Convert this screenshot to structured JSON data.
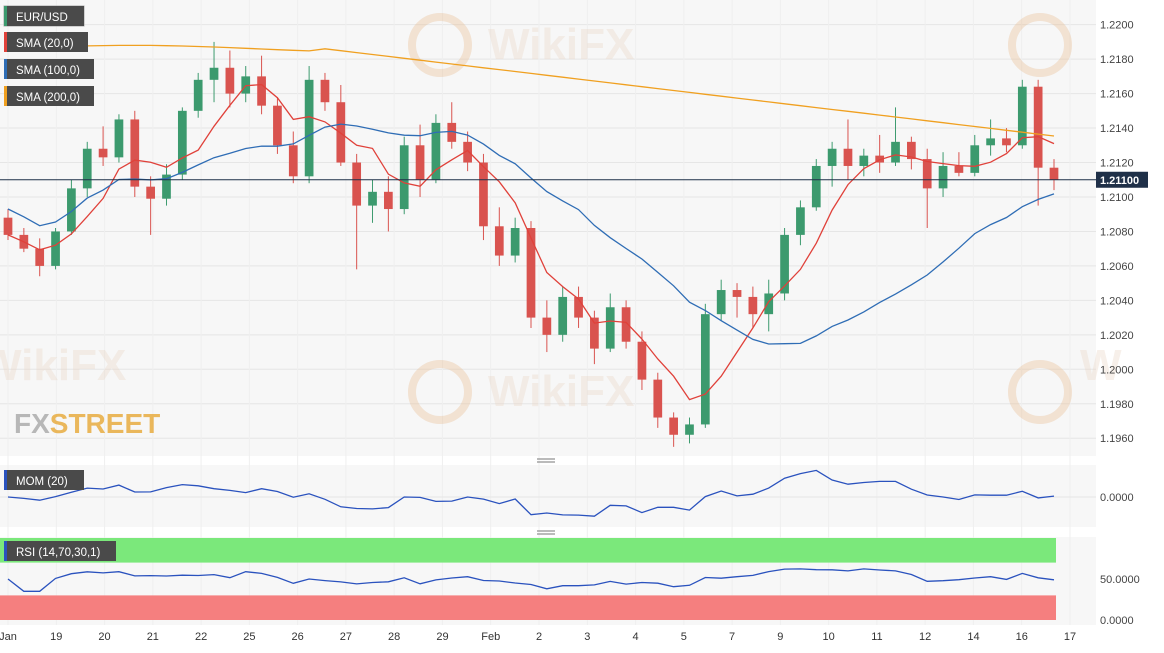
{
  "legend": {
    "symbol": "EUR/USD",
    "sma20": "SMA (20,0)",
    "sma100": "SMA (100,0)",
    "sma200": "SMA (200,0)"
  },
  "watermark": {
    "brand": "FXSTREET",
    "brand_fx": "FX",
    "brand_street": "STREET",
    "wikifx": "WikiFX"
  },
  "colors": {
    "up": "#3c9a6e",
    "down": "#d9534f",
    "sma20": "#e0413a",
    "sma100": "#2f6db5",
    "sma200": "#f0a020",
    "price_line": "#1f3048",
    "mom_line": "#2a52be",
    "rsi_line": "#2a52be",
    "rsi_overbought": "#7be87b",
    "rsi_oversold": "#f57f7f",
    "grid": "#e6e6e6"
  },
  "chart_data": [
    {
      "type": "candlestick",
      "series_name": "EUR/USD",
      "y_ticks": [
        "1.1960",
        "1.1980",
        "1.2000",
        "1.2020",
        "1.2040",
        "1.2060",
        "1.2080",
        "1.2100",
        "1.2120",
        "1.2140",
        "1.2160",
        "1.2180",
        "1.2200"
      ],
      "ylim": [
        1.1952,
        1.2212
      ],
      "last_price": 1.211,
      "last_price_label": "1.21100",
      "x_ticks": [
        "Jan",
        "19",
        "20",
        "21",
        "22",
        "25",
        "26",
        "27",
        "28",
        "29",
        "Feb",
        "2",
        "3",
        "4",
        "5",
        "7",
        "9",
        "10",
        "11",
        "12",
        "14",
        "16",
        "17"
      ],
      "candles": [
        [
          1.2088,
          1.2093,
          1.2075,
          1.2078
        ],
        [
          1.2078,
          1.2082,
          1.2068,
          1.207
        ],
        [
          1.207,
          1.2076,
          1.2054,
          1.206
        ],
        [
          1.206,
          1.2082,
          1.2058,
          1.208
        ],
        [
          1.208,
          1.211,
          1.2078,
          1.2105
        ],
        [
          1.2105,
          1.2132,
          1.21,
          1.2128
        ],
        [
          1.2128,
          1.2141,
          1.2118,
          1.2123
        ],
        [
          1.2123,
          1.2148,
          1.212,
          1.2145
        ],
        [
          1.2145,
          1.215,
          1.21,
          1.2106
        ],
        [
          1.2106,
          1.2112,
          1.2078,
          1.2099
        ],
        [
          1.2099,
          1.2119,
          1.2095,
          1.2113
        ],
        [
          1.2113,
          1.2152,
          1.211,
          1.215
        ],
        [
          1.215,
          1.2172,
          1.2146,
          1.2168
        ],
        [
          1.2168,
          1.219,
          1.2155,
          1.2175
        ],
        [
          1.2175,
          1.2185,
          1.2152,
          1.216
        ],
        [
          1.216,
          1.2176,
          1.2155,
          1.217
        ],
        [
          1.217,
          1.2182,
          1.2148,
          1.2153
        ],
        [
          1.2153,
          1.2158,
          1.2125,
          1.213
        ],
        [
          1.213,
          1.2138,
          1.2108,
          1.2112
        ],
        [
          1.2112,
          1.2176,
          1.2108,
          1.2168
        ],
        [
          1.2168,
          1.2172,
          1.215,
          1.2155
        ],
        [
          1.2155,
          1.2165,
          1.2118,
          1.212
        ],
        [
          1.212,
          1.2125,
          1.2058,
          1.2095
        ],
        [
          1.2095,
          1.211,
          1.2085,
          1.2103
        ],
        [
          1.2103,
          1.2112,
          1.208,
          1.2093
        ],
        [
          1.2093,
          1.2135,
          1.209,
          1.213
        ],
        [
          1.213,
          1.2142,
          1.21,
          1.211
        ],
        [
          1.211,
          1.2148,
          1.2108,
          1.2143
        ],
        [
          1.2143,
          1.2155,
          1.2128,
          1.2132
        ],
        [
          1.2132,
          1.2138,
          1.2115,
          1.212
        ],
        [
          1.212,
          1.2125,
          1.2075,
          1.2083
        ],
        [
          1.2083,
          1.2094,
          1.206,
          1.2066
        ],
        [
          1.2066,
          1.2088,
          1.2062,
          1.2082
        ],
        [
          1.2082,
          1.2086,
          1.2024,
          1.203
        ],
        [
          1.203,
          1.204,
          1.201,
          1.202
        ],
        [
          1.202,
          1.2048,
          1.2016,
          1.2042
        ],
        [
          1.2042,
          1.2048,
          1.2024,
          1.203
        ],
        [
          1.203,
          1.2034,
          1.2003,
          1.2012
        ],
        [
          1.2012,
          1.2044,
          1.201,
          1.2036
        ],
        [
          1.2036,
          1.204,
          1.2012,
          1.2016
        ],
        [
          1.2016,
          1.2022,
          1.1988,
          1.1994
        ],
        [
          1.1994,
          1.1998,
          1.1966,
          1.1972
        ],
        [
          1.1972,
          1.1975,
          1.1955,
          1.1962
        ],
        [
          1.1962,
          1.1972,
          1.1957,
          1.1968
        ],
        [
          1.1968,
          1.2038,
          1.1966,
          1.2032
        ],
        [
          1.2032,
          1.2052,
          1.2028,
          1.2046
        ],
        [
          1.2046,
          1.205,
          1.203,
          1.2042
        ],
        [
          1.2042,
          1.2048,
          1.2024,
          1.2032
        ],
        [
          1.2032,
          1.2052,
          1.2022,
          1.2044
        ],
        [
          1.2044,
          1.2082,
          1.204,
          1.2078
        ],
        [
          1.2078,
          1.2098,
          1.2072,
          1.2094
        ],
        [
          1.2094,
          1.2122,
          1.2092,
          1.2118
        ],
        [
          1.2118,
          1.2132,
          1.2106,
          1.2128
        ],
        [
          1.2128,
          1.2145,
          1.211,
          1.2118
        ],
        [
          1.2118,
          1.2128,
          1.2112,
          1.2124
        ],
        [
          1.2124,
          1.2136,
          1.2114,
          1.212
        ],
        [
          1.212,
          1.2152,
          1.2118,
          1.2132
        ],
        [
          1.2132,
          1.2135,
          1.2116,
          1.2122
        ],
        [
          1.2122,
          1.2128,
          1.2082,
          1.2105
        ],
        [
          1.2105,
          1.2126,
          1.21,
          1.2118
        ],
        [
          1.2118,
          1.2126,
          1.2112,
          1.2114
        ],
        [
          1.2114,
          1.2136,
          1.2112,
          1.213
        ],
        [
          1.213,
          1.2145,
          1.2124,
          1.2134
        ],
        [
          1.2134,
          1.214,
          1.2126,
          1.213
        ],
        [
          1.213,
          1.2168,
          1.2128,
          1.2164
        ],
        [
          1.2164,
          1.2168,
          1.2095,
          1.2117
        ],
        [
          1.2117,
          1.2122,
          1.2104,
          1.211
        ]
      ]
    },
    {
      "type": "line",
      "title": "MOM (20)",
      "y_ticks": [
        "0.0000"
      ]
    },
    {
      "type": "line",
      "title": "RSI (14,70,30,1)",
      "y_ticks": [
        "50.0000",
        "0.0000"
      ]
    }
  ]
}
